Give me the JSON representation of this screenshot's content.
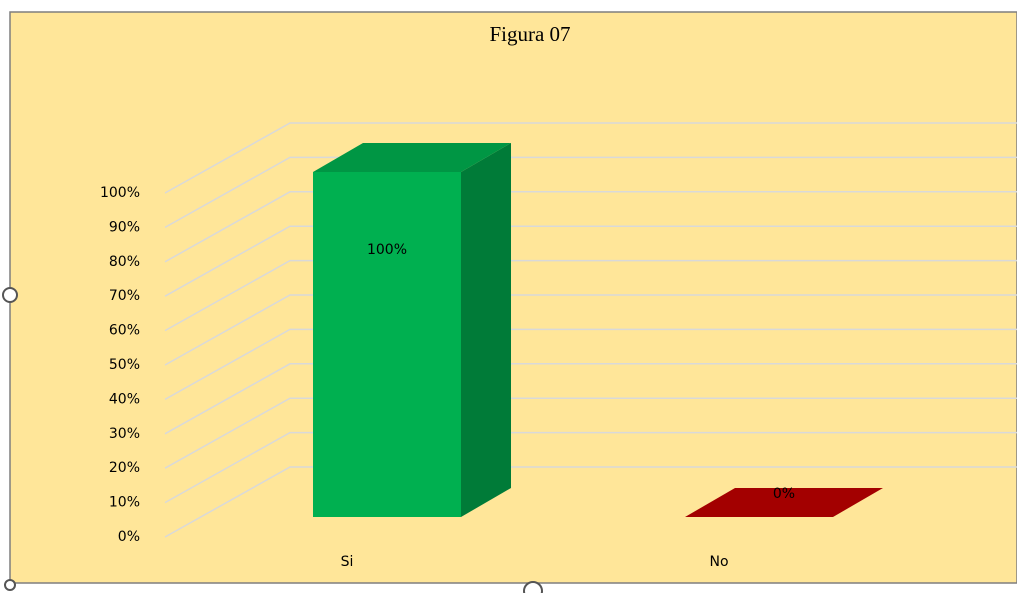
{
  "chart_data": {
    "type": "bar3d",
    "title": "Figura 07",
    "categories": [
      "Si",
      "No"
    ],
    "series": [
      {
        "values": [
          100,
          0
        ],
        "value_labels": [
          "100%",
          "0%"
        ],
        "colors": [
          "#00b050",
          "#c00000"
        ]
      }
    ],
    "ylim": [
      0,
      100
    ],
    "yticks": [
      {
        "value": 0,
        "label": "0%"
      },
      {
        "value": 10,
        "label": "10%"
      },
      {
        "value": 20,
        "label": "20%"
      },
      {
        "value": 30,
        "label": "30%"
      },
      {
        "value": 40,
        "label": "40%"
      },
      {
        "value": 50,
        "label": "50%"
      },
      {
        "value": 60,
        "label": "60%"
      },
      {
        "value": 70,
        "label": "70%"
      },
      {
        "value": 80,
        "label": "80%"
      },
      {
        "value": 90,
        "label": "90%"
      },
      {
        "value": 100,
        "label": "100%"
      }
    ],
    "grid": true
  }
}
